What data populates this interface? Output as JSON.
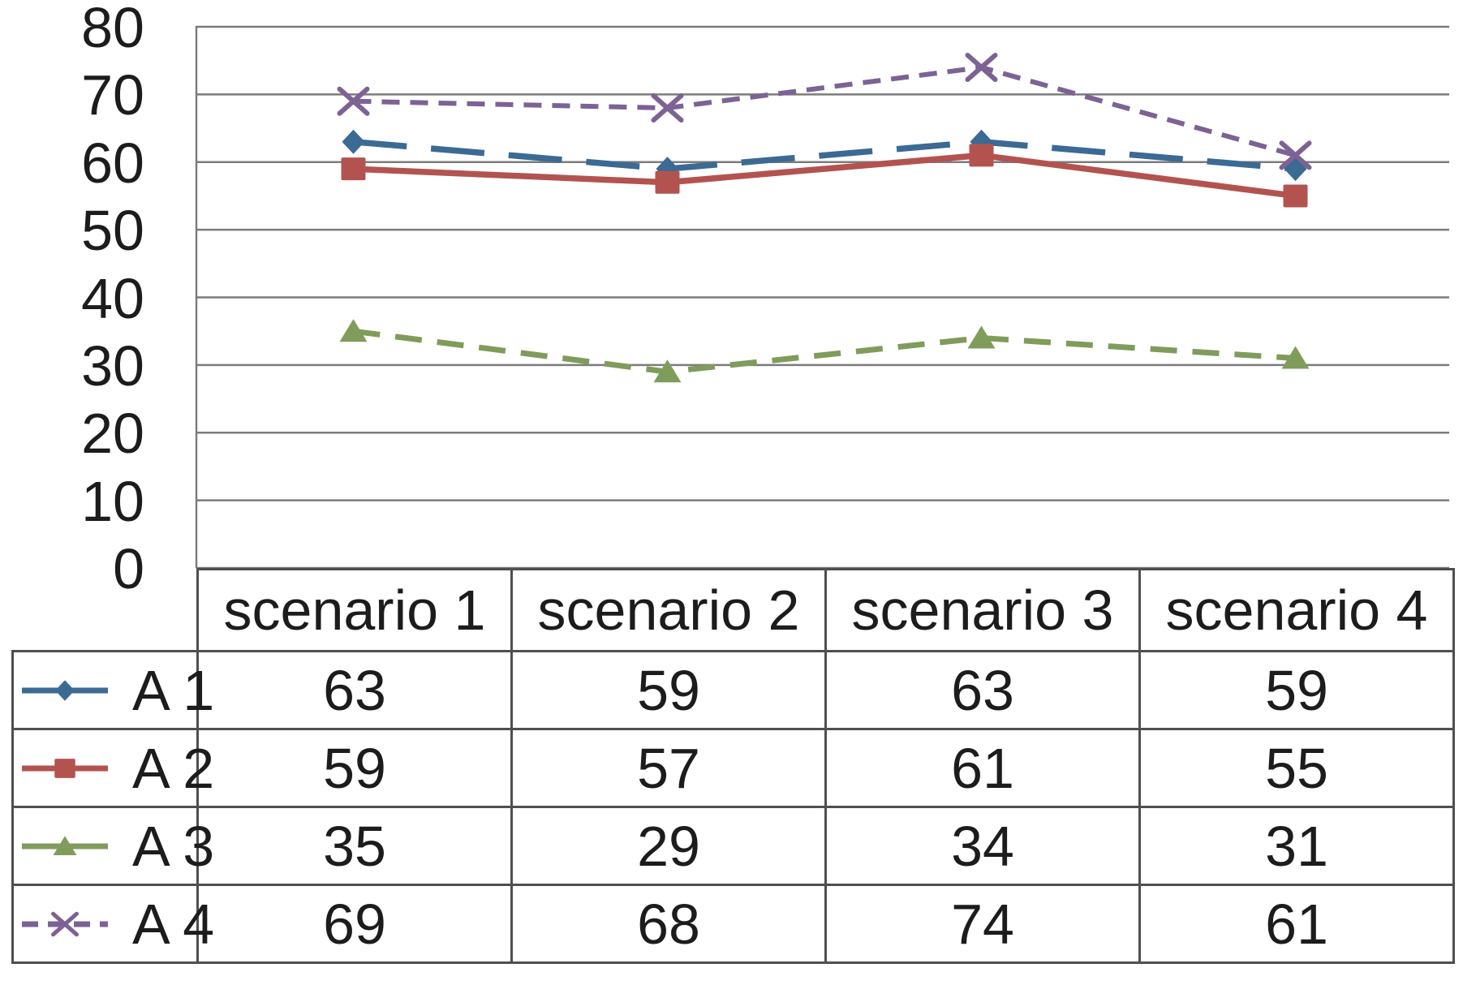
{
  "chart_data": {
    "type": "line",
    "title": "",
    "xlabel": "",
    "ylabel": "",
    "categories": [
      "scenario 1",
      "scenario 2",
      "scenario 3",
      "scenario 4"
    ],
    "series": [
      {
        "name": "A 1",
        "values": [
          63,
          59,
          63,
          59
        ],
        "color": "#3B6A94",
        "marker": "diamond",
        "dash": [
          66,
          30
        ],
        "legend_dash": null,
        "line_width": 7.5
      },
      {
        "name": "A 2",
        "values": [
          59,
          57,
          61,
          55
        ],
        "color": "#B35350",
        "marker": "square",
        "dash": null,
        "legend_dash": null,
        "line_width": 7.5
      },
      {
        "name": "A 3",
        "values": [
          35,
          29,
          34,
          31
        ],
        "color": "#7F9C5B",
        "marker": "triangle",
        "dash": [
          33,
          19
        ],
        "legend_dash": null,
        "line_width": 7
      },
      {
        "name": "A 4",
        "values": [
          69,
          68,
          74,
          61
        ],
        "color": "#7C6295",
        "marker": "x",
        "dash": [
          22,
          13
        ],
        "legend_dash": [
          20,
          12
        ],
        "line_width": 6
      }
    ],
    "ylim": [
      0,
      80
    ],
    "ytick_step": 10,
    "yticks": [
      80,
      70,
      60,
      50,
      40,
      30,
      20,
      10,
      0
    ],
    "grid": true,
    "gridline_color": "#7b7b7b",
    "axis_line_color": "#7b7b7b",
    "table_border_color": "#4f4f4f",
    "text_color": "#1c1c1c",
    "background": "#ffffff",
    "legend_position": "table-left"
  }
}
